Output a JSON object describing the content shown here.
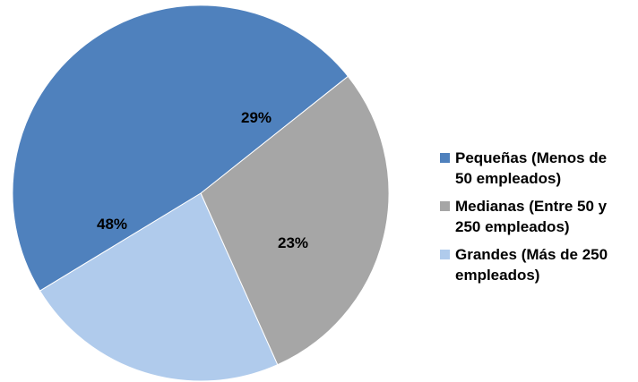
{
  "chart_data": {
    "type": "pie",
    "categories": [
      "Pequeñas (Menos de\n50 empleados)",
      "Medianas (Entre 50 y\n250 empleados)",
      "Grandes (Más de 250\nempleados)"
    ],
    "values": [
      48,
      29,
      23
    ],
    "data_labels": [
      "48%",
      "29%",
      "23%"
    ],
    "colors": [
      "#4f81bd",
      "#a6a6a6",
      "#b0cbec"
    ],
    "legend_position": "right"
  }
}
